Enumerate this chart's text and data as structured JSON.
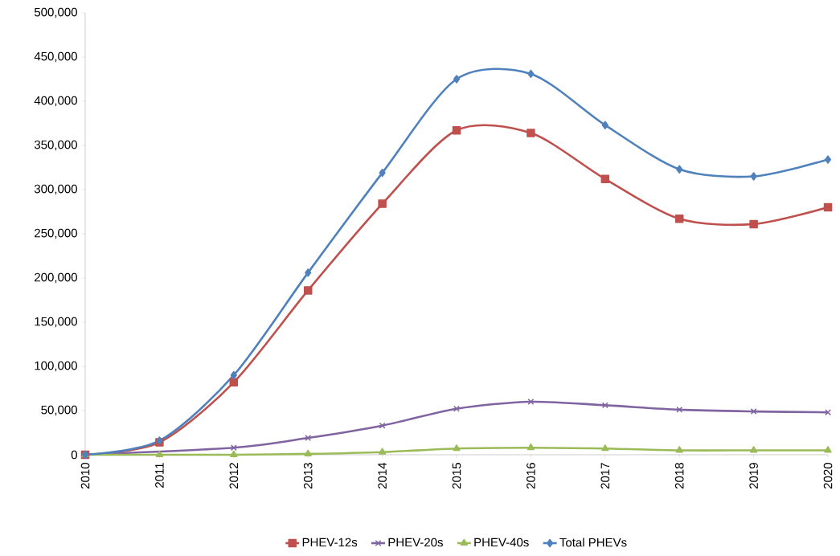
{
  "chart_data": {
    "type": "line",
    "categories": [
      "2010",
      "2011",
      "2012",
      "2013",
      "2014",
      "2015",
      "2016",
      "2017",
      "2018",
      "2019",
      "2020"
    ],
    "series": [
      {
        "name": "PHEV-12s",
        "color": "#c0504d",
        "marker": "square",
        "values": [
          0,
          14000,
          82000,
          186000,
          284000,
          367000,
          364000,
          312000,
          267000,
          261000,
          280000
        ]
      },
      {
        "name": "PHEV-20s",
        "color": "#8064a2",
        "marker": "cross",
        "values": [
          0,
          null,
          8000,
          19000,
          33000,
          52000,
          60000,
          56000,
          51000,
          49000,
          48000
        ]
      },
      {
        "name": "PHEV-40s",
        "color": "#9bbb59",
        "marker": "triangle",
        "values": [
          0,
          0,
          0,
          1000,
          3000,
          7000,
          8000,
          7000,
          5000,
          5000,
          5000
        ]
      },
      {
        "name": "Total PHEVs",
        "color": "#4f81bd",
        "marker": "diamond",
        "values": [
          0,
          16000,
          90000,
          206000,
          319000,
          425000,
          431000,
          373000,
          323000,
          315000,
          334000
        ]
      }
    ],
    "ylim": [
      0,
      500000
    ],
    "yticks": [
      0,
      {
        "value": 50000,
        "label": "50,000"
      },
      {
        "value": 100000,
        "label": "100,000"
      },
      {
        "value": 150000,
        "label": "150,000"
      },
      {
        "value": 200000,
        "label": "200,000"
      },
      {
        "value": 250000,
        "label": "250,000"
      },
      {
        "value": 300000,
        "label": "300,000"
      },
      {
        "value": 350000,
        "label": "350,000"
      },
      {
        "value": 400000,
        "label": "400,000"
      },
      {
        "value": 450000,
        "label": "450,000"
      },
      {
        "value": 500000,
        "label": "500,000"
      }
    ],
    "legend": "bottom"
  }
}
